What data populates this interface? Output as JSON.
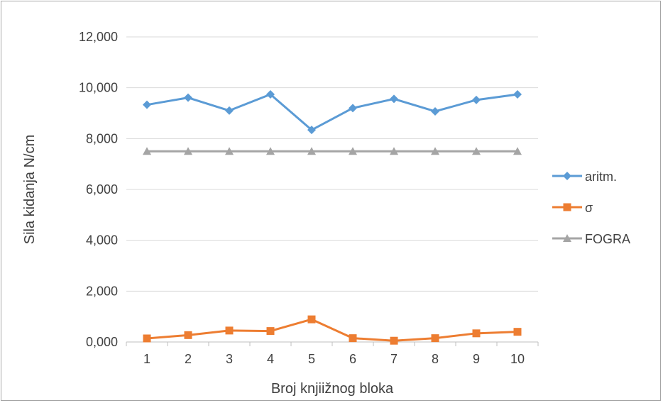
{
  "chart_data": {
    "type": "line",
    "xlabel": "Broj knjiižnog bloka",
    "ylabel": "Sila kidanja N/cm",
    "categories": [
      "1",
      "2",
      "3",
      "4",
      "5",
      "6",
      "7",
      "8",
      "9",
      "10"
    ],
    "ylim": [
      0,
      12
    ],
    "yticks": [
      "0,000",
      "2,000",
      "4,000",
      "6,000",
      "8,000",
      "10,000",
      "12,000"
    ],
    "grid": "horizontal",
    "legend_position": "right",
    "series": [
      {
        "name": "aritm.",
        "color": "#5b9bd5",
        "marker": "diamond",
        "values": [
          9.33,
          9.61,
          9.1,
          9.74,
          8.34,
          9.2,
          9.56,
          9.07,
          9.52,
          9.74
        ]
      },
      {
        "name": "σ",
        "color": "#ed7d31",
        "marker": "square",
        "values": [
          0.14,
          0.27,
          0.45,
          0.43,
          0.89,
          0.15,
          0.05,
          0.15,
          0.34,
          0.4
        ]
      },
      {
        "name": "FOGRA",
        "color": "#a5a5a5",
        "marker": "triangle",
        "values": [
          7.5,
          7.5,
          7.5,
          7.5,
          7.5,
          7.5,
          7.5,
          7.5,
          7.5,
          7.5
        ]
      }
    ]
  }
}
